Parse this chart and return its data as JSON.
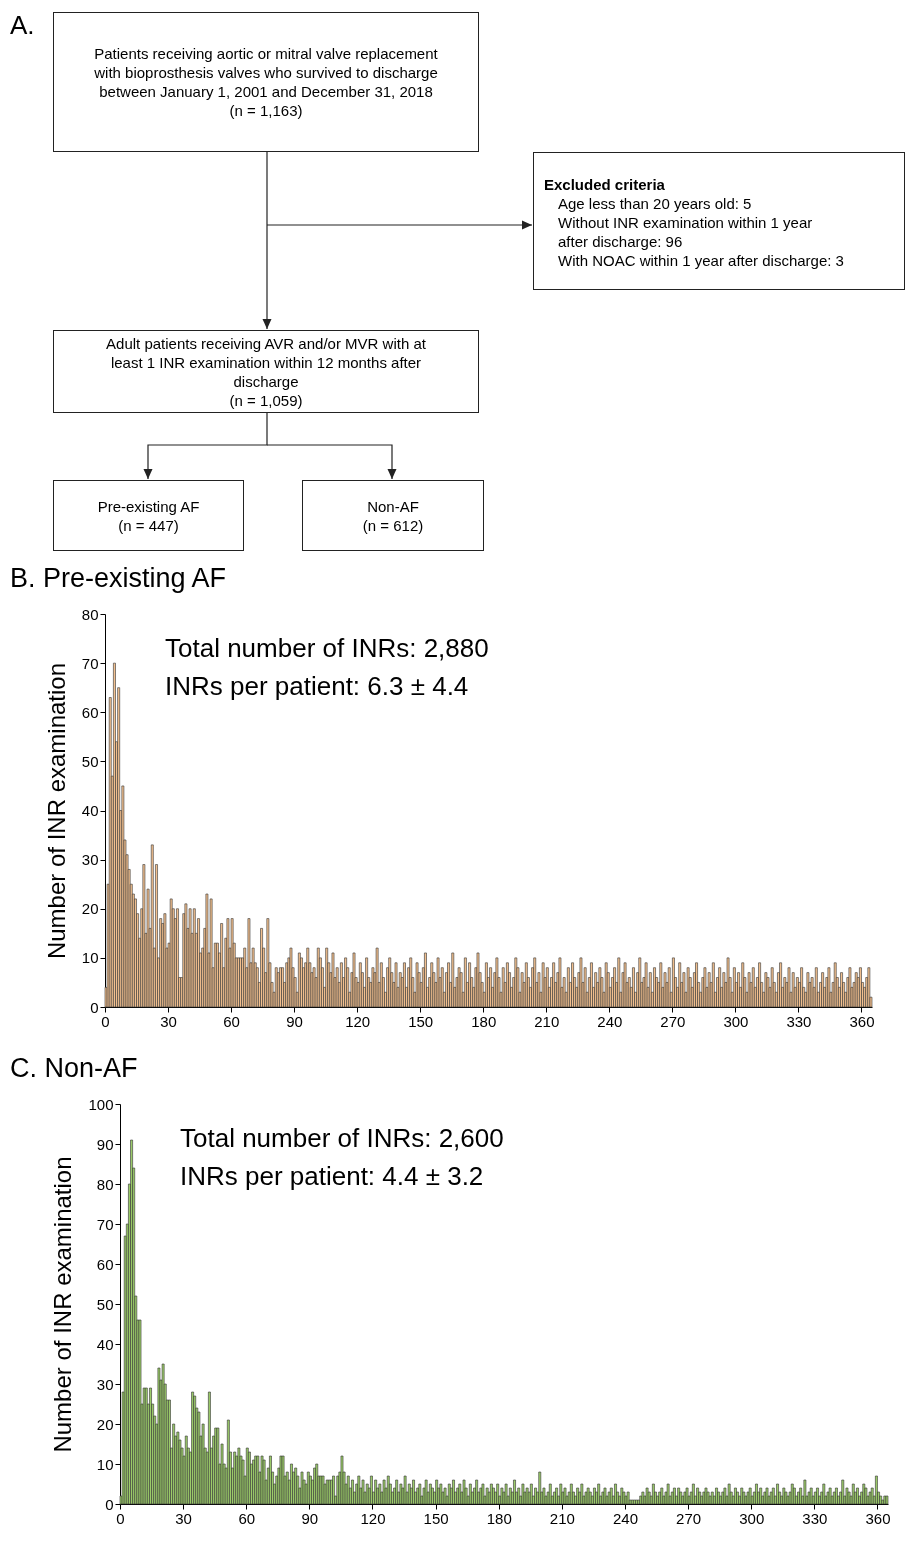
{
  "chart_data": [
    {
      "type": "other",
      "title": "A.",
      "annotations": [
        "Patients receiving aortic or mitral valve replacement\nwith bioprosthesis valves who survived to discharge\nbetween January 1, 2001 and December 31, 2018\n(n = 1,163)",
        "Excluded criteria\nAge less than 20 years old: 5\nWithout INR examination within 1 year\nafter discharge: 96\nWith NOAC within 1 year after discharge: 3",
        "Adult patients receiving AVR and/or MVR with at\nleast 1 INR examination within 12 months after\ndischarge\n(n = 1,059)",
        "Pre-existing AF\n(n = 447)",
        "Non-AF\n(n = 612)"
      ]
    },
    {
      "type": "histogram",
      "title": "B. Pre-existing AF",
      "ylabel": "Number of INR examination",
      "color": "#f2c08f",
      "annotations": [
        "Total number of INRs: 2,880",
        "INRs per patient: 6.3 ± 4.4"
      ],
      "xlim": [
        0,
        365
      ],
      "xticks": [
        0,
        30,
        60,
        90,
        120,
        150,
        180,
        210,
        240,
        270,
        300,
        330,
        360
      ],
      "ylim": [
        0,
        80
      ],
      "yticks": [
        0,
        10,
        20,
        30,
        40,
        50,
        60,
        70,
        80
      ],
      "bins": [
        0,
        1,
        2,
        3,
        4,
        5,
        6,
        7,
        8,
        9,
        10,
        11,
        12,
        13,
        14,
        15,
        16,
        17,
        18,
        19,
        20,
        21,
        22,
        23,
        24,
        25,
        26,
        27,
        28,
        29,
        30,
        31,
        32,
        33,
        34,
        35,
        36,
        37,
        38,
        39,
        40,
        41,
        42,
        43,
        44,
        45,
        46,
        47,
        48,
        49,
        50,
        51,
        52,
        53,
        54,
        55,
        56,
        57,
        58,
        59,
        60,
        61,
        62,
        63,
        64,
        65,
        66,
        67,
        68,
        69,
        70,
        71,
        72,
        73,
        74,
        75,
        76,
        77,
        78,
        79,
        80,
        81,
        82,
        83,
        84,
        85,
        86,
        87,
        88,
        89,
        90,
        91,
        92,
        93,
        94,
        95,
        96,
        97,
        98,
        99,
        100,
        101,
        102,
        103,
        104,
        105,
        106,
        107,
        108,
        109,
        110,
        111,
        112,
        113,
        114,
        115,
        116,
        117,
        118,
        119,
        120,
        121,
        122,
        123,
        124,
        125,
        126,
        127,
        128,
        129,
        130,
        131,
        132,
        133,
        134,
        135,
        136,
        137,
        138,
        139,
        140,
        141,
        142,
        143,
        144,
        145,
        146,
        147,
        148,
        149,
        150,
        151,
        152,
        153,
        154,
        155,
        156,
        157,
        158,
        159,
        160,
        161,
        162,
        163,
        164,
        165,
        166,
        167,
        168,
        169,
        170,
        171,
        172,
        173,
        174,
        175,
        176,
        177,
        178,
        179,
        180,
        181,
        182,
        183,
        184,
        185,
        186,
        187,
        188,
        189,
        190,
        191,
        192,
        193,
        194,
        195,
        196,
        197,
        198,
        199,
        200,
        201,
        202,
        203,
        204,
        205,
        206,
        207,
        208,
        209,
        210,
        211,
        212,
        213,
        214,
        215,
        216,
        217,
        218,
        219,
        220,
        221,
        222,
        223,
        224,
        225,
        226,
        227,
        228,
        229,
        230,
        231,
        232,
        233,
        234,
        235,
        236,
        237,
        238,
        239,
        240,
        241,
        242,
        243,
        244,
        245,
        246,
        247,
        248,
        249,
        250,
        251,
        252,
        253,
        254,
        255,
        256,
        257,
        258,
        259,
        260,
        261,
        262,
        263,
        264,
        265,
        266,
        267,
        268,
        269,
        270,
        271,
        272,
        273,
        274,
        275,
        276,
        277,
        278,
        279,
        280,
        281,
        282,
        283,
        284,
        285,
        286,
        287,
        288,
        289,
        290,
        291,
        292,
        293,
        294,
        295,
        296,
        297,
        298,
        299,
        300,
        301,
        302,
        303,
        304,
        305,
        306,
        307,
        308,
        309,
        310,
        311,
        312,
        313,
        314,
        315,
        316,
        317,
        318,
        319,
        320,
        321,
        322,
        323,
        324,
        325,
        326,
        327,
        328,
        329,
        330,
        331,
        332,
        333,
        334,
        335,
        336,
        337,
        338,
        339,
        340,
        341,
        342,
        343,
        344,
        345,
        346,
        347,
        348,
        349,
        350,
        351,
        352,
        353,
        354,
        355,
        356,
        357,
        358,
        359,
        360,
        361,
        362,
        363,
        364,
        365
      ],
      "values": [
        4,
        25,
        63,
        47,
        70,
        54,
        65,
        40,
        45,
        34,
        31,
        28,
        25,
        23,
        22,
        19,
        14,
        20,
        29,
        15,
        24,
        16,
        33,
        12,
        29,
        10,
        18,
        17,
        19,
        12,
        13,
        22,
        20,
        18,
        20,
        6,
        6,
        19,
        21,
        16,
        20,
        15,
        20,
        15,
        18,
        11,
        12,
        16,
        23,
        11,
        22,
        8,
        13,
        13,
        11,
        17,
        8,
        14,
        18,
        12,
        18,
        13,
        10,
        10,
        10,
        10,
        12,
        8,
        18,
        9,
        12,
        9,
        8,
        5,
        16,
        12,
        7,
        18,
        9,
        5,
        3,
        8,
        7,
        8,
        8,
        5,
        9,
        10,
        12,
        8,
        6,
        3,
        11,
        10,
        8,
        9,
        12,
        9,
        7,
        8,
        6,
        12,
        10,
        8,
        4,
        12,
        9,
        7,
        11,
        6,
        8,
        5,
        9,
        6,
        10,
        8,
        3,
        7,
        11,
        6,
        5,
        9,
        7,
        4,
        10,
        6,
        5,
        8,
        7,
        12,
        5,
        9,
        6,
        3,
        8,
        10,
        7,
        5,
        9,
        4,
        7,
        6,
        9,
        4,
        8,
        10,
        6,
        3,
        9,
        7,
        5,
        8,
        11,
        4,
        6,
        9,
        7,
        5,
        10,
        6,
        8,
        3,
        7,
        9,
        5,
        11,
        4,
        6,
        8,
        7,
        3,
        10,
        5,
        9,
        6,
        4,
        8,
        11,
        7,
        5,
        3,
        9,
        6,
        8,
        4,
        7,
        10,
        6,
        3,
        8,
        5,
        9,
        7,
        4,
        6,
        10,
        8,
        3,
        7,
        5,
        9,
        6,
        4,
        8,
        10,
        5,
        7,
        3,
        9,
        6,
        8,
        4,
        6,
        9,
        5,
        7,
        10,
        4,
        6,
        3,
        8,
        5,
        9,
        6,
        4,
        7,
        10,
        5,
        8,
        3,
        6,
        9,
        4,
        7,
        5,
        8,
        6,
        3,
        9,
        7,
        4,
        6,
        8,
        5,
        10,
        3,
        7,
        9,
        5,
        6,
        4,
        8,
        3,
        7,
        10,
        5,
        6,
        9,
        4,
        7,
        3,
        8,
        6,
        5,
        9,
        4,
        7,
        5,
        8,
        3,
        10,
        6,
        4,
        9,
        5,
        7,
        3,
        8,
        6,
        4,
        7,
        9,
        5,
        3,
        6,
        8,
        4,
        7,
        5,
        9,
        3,
        6,
        8,
        4,
        7,
        5,
        10,
        6,
        3,
        8,
        5,
        7,
        4,
        9,
        6,
        3,
        7,
        5,
        8,
        4,
        6,
        9,
        5,
        3,
        7,
        6,
        4,
        8,
        5,
        3,
        7,
        9,
        4,
        6,
        5,
        8,
        3,
        7,
        4,
        6,
        5,
        8,
        4,
        3,
        7,
        5,
        6,
        4,
        8,
        3,
        5,
        7,
        4,
        6,
        8,
        3,
        5,
        9,
        6,
        4,
        7,
        5,
        3,
        6,
        8,
        4,
        5,
        7,
        6,
        8,
        5,
        4,
        6,
        8,
        2
      ]
    },
    {
      "type": "histogram",
      "title": "C. Non-AF",
      "ylabel": "Number of INR examination",
      "color": "#9ccc6a",
      "annotations": [
        "Total number of INRs: 2,600",
        "INRs per patient: 4.4 ± 3.2"
      ],
      "xlim": [
        0,
        365
      ],
      "xticks": [
        0,
        30,
        60,
        90,
        120,
        150,
        180,
        210,
        240,
        270,
        300,
        330,
        360
      ],
      "ylim": [
        0,
        100
      ],
      "yticks": [
        0,
        10,
        20,
        30,
        40,
        50,
        60,
        70,
        80,
        90,
        100
      ],
      "bins": [
        0,
        1,
        2,
        3,
        4,
        5,
        6,
        7,
        8,
        9,
        10,
        11,
        12,
        13,
        14,
        15,
        16,
        17,
        18,
        19,
        20,
        21,
        22,
        23,
        24,
        25,
        26,
        27,
        28,
        29,
        30,
        31,
        32,
        33,
        34,
        35,
        36,
        37,
        38,
        39,
        40,
        41,
        42,
        43,
        44,
        45,
        46,
        47,
        48,
        49,
        50,
        51,
        52,
        53,
        54,
        55,
        56,
        57,
        58,
        59,
        60,
        61,
        62,
        63,
        64,
        65,
        66,
        67,
        68,
        69,
        70,
        71,
        72,
        73,
        74,
        75,
        76,
        77,
        78,
        79,
        80,
        81,
        82,
        83,
        84,
        85,
        86,
        87,
        88,
        89,
        90,
        91,
        92,
        93,
        94,
        95,
        96,
        97,
        98,
        99,
        100,
        101,
        102,
        103,
        104,
        105,
        106,
        107,
        108,
        109,
        110,
        111,
        112,
        113,
        114,
        115,
        116,
        117,
        118,
        119,
        120,
        121,
        122,
        123,
        124,
        125,
        126,
        127,
        128,
        129,
        130,
        131,
        132,
        133,
        134,
        135,
        136,
        137,
        138,
        139,
        140,
        141,
        142,
        143,
        144,
        145,
        146,
        147,
        148,
        149,
        150,
        151,
        152,
        153,
        154,
        155,
        156,
        157,
        158,
        159,
        160,
        161,
        162,
        163,
        164,
        165,
        166,
        167,
        168,
        169,
        170,
        171,
        172,
        173,
        174,
        175,
        176,
        177,
        178,
        179,
        180,
        181,
        182,
        183,
        184,
        185,
        186,
        187,
        188,
        189,
        190,
        191,
        192,
        193,
        194,
        195,
        196,
        197,
        198,
        199,
        200,
        201,
        202,
        203,
        204,
        205,
        206,
        207,
        208,
        209,
        210,
        211,
        212,
        213,
        214,
        215,
        216,
        217,
        218,
        219,
        220,
        221,
        222,
        223,
        224,
        225,
        226,
        227,
        228,
        229,
        230,
        231,
        232,
        233,
        234,
        235,
        236,
        237,
        238,
        239,
        240,
        241,
        242,
        243,
        244,
        245,
        246,
        247,
        248,
        249,
        250,
        251,
        252,
        253,
        254,
        255,
        256,
        257,
        258,
        259,
        260,
        261,
        262,
        263,
        264,
        265,
        266,
        267,
        268,
        269,
        270,
        271,
        272,
        273,
        274,
        275,
        276,
        277,
        278,
        279,
        280,
        281,
        282,
        283,
        284,
        285,
        286,
        287,
        288,
        289,
        290,
        291,
        292,
        293,
        294,
        295,
        296,
        297,
        298,
        299,
        300,
        301,
        302,
        303,
        304,
        305,
        306,
        307,
        308,
        309,
        310,
        311,
        312,
        313,
        314,
        315,
        316,
        317,
        318,
        319,
        320,
        321,
        322,
        323,
        324,
        325,
        326,
        327,
        328,
        329,
        330,
        331,
        332,
        333,
        334,
        335,
        336,
        337,
        338,
        339,
        340,
        341,
        342,
        343,
        344,
        345,
        346,
        347,
        348,
        349,
        350,
        351,
        352,
        353,
        354,
        355,
        356,
        357,
        358,
        359,
        360,
        361,
        362,
        363,
        364,
        365
      ],
      "values": [
        2,
        28,
        67,
        70,
        80,
        91,
        84,
        52,
        46,
        46,
        25,
        29,
        29,
        25,
        29,
        25,
        22,
        20,
        34,
        31,
        35,
        30,
        26,
        26,
        14,
        20,
        17,
        18,
        16,
        14,
        12,
        17,
        14,
        13,
        28,
        27,
        24,
        23,
        17,
        20,
        14,
        13,
        28,
        14,
        17,
        19,
        19,
        10,
        15,
        10,
        9,
        21,
        13,
        9,
        13,
        12,
        14,
        12,
        11,
        7,
        14,
        13,
        10,
        11,
        12,
        12,
        8,
        12,
        11,
        6,
        9,
        12,
        8,
        5,
        7,
        9,
        12,
        12,
        7,
        8,
        6,
        10,
        8,
        9,
        7,
        4,
        8,
        6,
        5,
        8,
        7,
        6,
        9,
        10,
        7,
        7,
        7,
        5,
        6,
        6,
        6,
        7,
        2,
        7,
        8,
        12,
        8,
        5,
        7,
        4,
        6,
        3,
        5,
        7,
        4,
        6,
        3,
        5,
        4,
        7,
        3,
        6,
        4,
        5,
        3,
        6,
        4,
        7,
        5,
        3,
        4,
        6,
        3,
        5,
        4,
        7,
        3,
        5,
        4,
        6,
        3,
        4,
        5,
        2,
        4,
        6,
        3,
        5,
        4,
        3,
        6,
        4,
        5,
        3,
        4,
        2,
        5,
        4,
        6,
        3,
        4,
        5,
        3,
        6,
        4,
        2,
        5,
        3,
        4,
        6,
        3,
        4,
        5,
        2,
        4,
        3,
        5,
        4,
        3,
        5,
        2,
        4,
        3,
        5,
        2,
        4,
        3,
        6,
        3,
        4,
        2,
        5,
        3,
        4,
        3,
        5,
        2,
        4,
        3,
        8,
        3,
        4,
        2,
        3,
        5,
        2,
        3,
        4,
        2,
        5,
        3,
        4,
        2,
        3,
        5,
        3,
        2,
        4,
        3,
        5,
        2,
        3,
        4,
        3,
        2,
        4,
        3,
        5,
        2,
        3,
        4,
        2,
        3,
        4,
        2,
        5,
        3,
        2,
        4,
        3,
        2,
        3,
        1,
        1,
        1,
        1,
        1,
        2,
        3,
        2,
        4,
        3,
        2,
        5,
        3,
        2,
        3,
        4,
        2,
        3,
        5,
        2,
        3,
        4,
        2,
        4,
        3,
        2,
        3,
        4,
        2,
        3,
        5,
        2,
        4,
        3,
        2,
        3,
        4,
        3,
        2,
        3,
        2,
        4,
        3,
        2,
        3,
        4,
        2,
        5,
        3,
        2,
        4,
        3,
        2,
        4,
        3,
        2,
        3,
        4,
        2,
        3,
        5,
        3,
        4,
        2,
        3,
        4,
        2,
        3,
        4,
        2,
        5,
        3,
        2,
        4,
        3,
        2,
        3,
        5,
        4,
        2,
        3,
        4,
        2,
        6,
        2,
        3,
        4,
        2,
        3,
        4,
        2,
        3,
        5,
        2,
        3,
        4,
        2,
        3,
        4,
        2,
        3,
        6,
        2,
        4,
        3,
        2,
        5,
        3,
        4,
        2,
        3,
        5,
        4,
        2,
        3,
        4,
        2,
        7,
        3,
        2,
        1,
        2,
        2
      ]
    }
  ]
}
